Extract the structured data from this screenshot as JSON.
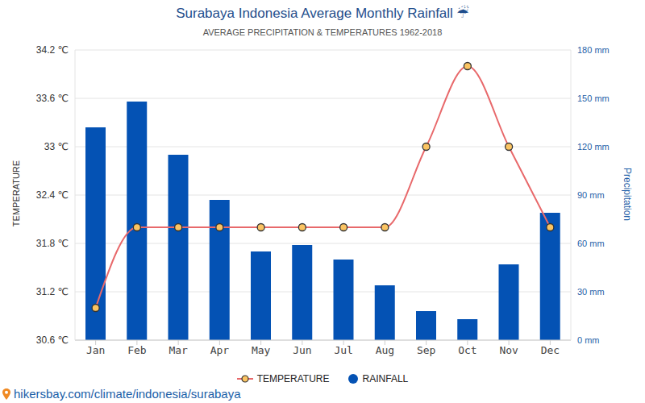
{
  "chart_data": {
    "type": "bar",
    "title": "Surabaya Indonesia Average Monthly Rainfall ☔",
    "subtitle": "AVERAGE PRECIPITATION & TEMPERATURES 1962-2018",
    "ylabel": "TEMPERATURE",
    "y2label": "Precipitation",
    "source": "hikersbay.com/climate/indonesia/surabaya",
    "categories": [
      "Jan",
      "Feb",
      "Mar",
      "Apr",
      "May",
      "Jun",
      "Jul",
      "Aug",
      "Sep",
      "Oct",
      "Nov",
      "Dec"
    ],
    "series": [
      {
        "name": "TEMPERATURE",
        "type": "line",
        "color": "#e8696b",
        "marker": "circle",
        "values": [
          31,
          32,
          32,
          32,
          32,
          32,
          32,
          32,
          33,
          34,
          33,
          32
        ]
      },
      {
        "name": "RAINFALL",
        "type": "bar",
        "color": "#0452b4",
        "axis": "y2",
        "values": [
          132,
          148,
          115,
          87,
          55,
          59,
          50,
          34,
          18,
          13,
          47,
          79
        ]
      }
    ],
    "ylim": [
      30.6,
      34.2
    ],
    "yticks": [
      {
        "value": 30.6,
        "label": "30.6 ℃"
      },
      {
        "value": 31.2,
        "label": "31.2 ℃"
      },
      {
        "value": 31.8,
        "label": "31.8 ℃"
      },
      {
        "value": 32.4,
        "label": "32.4 ℃"
      },
      {
        "value": 33,
        "label": "33 ℃"
      },
      {
        "value": 33.6,
        "label": "33.6 ℃"
      },
      {
        "value": 34.2,
        "label": "34.2 ℃"
      }
    ],
    "y2lim": [
      0,
      180
    ],
    "y2ticks": [
      {
        "value": 0,
        "label": "0 mm"
      },
      {
        "value": 30,
        "label": "30 mm"
      },
      {
        "value": 60,
        "label": "60 mm"
      },
      {
        "value": 90,
        "label": "90 mm"
      },
      {
        "value": 120,
        "label": "120 mm"
      },
      {
        "value": 150,
        "label": "150 mm"
      },
      {
        "value": 180,
        "label": "180 mm"
      }
    ],
    "grid": true,
    "legend": "bottom"
  }
}
